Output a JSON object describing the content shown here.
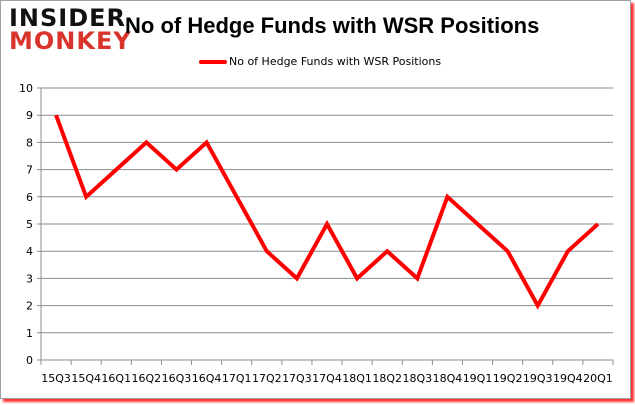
{
  "logo": {
    "line1": "INSIDER",
    "line2": "MONKEY"
  },
  "chart_data": {
    "type": "line",
    "title": "No of Hedge Funds with WSR Positions",
    "categories": [
      "15Q3",
      "15Q4",
      "16Q1",
      "16Q2",
      "16Q3",
      "16Q4",
      "17Q1",
      "17Q2",
      "17Q3",
      "17Q4",
      "18Q1",
      "18Q2",
      "18Q3",
      "18Q4",
      "19Q1",
      "19Q2",
      "19Q3",
      "19Q4",
      "20Q1"
    ],
    "series": [
      {
        "name": "No of Hedge Funds with WSR Positions",
        "color": "#ff0000",
        "values": [
          9,
          6,
          7,
          8,
          7,
          8,
          6,
          4,
          3,
          5,
          3,
          4,
          3,
          6,
          5,
          4,
          2,
          4,
          5
        ]
      }
    ],
    "ylim": [
      0,
      10
    ],
    "yticks": [
      0,
      1,
      2,
      3,
      4,
      5,
      6,
      7,
      8,
      9,
      10
    ],
    "grid": true,
    "legend": "top-center"
  }
}
